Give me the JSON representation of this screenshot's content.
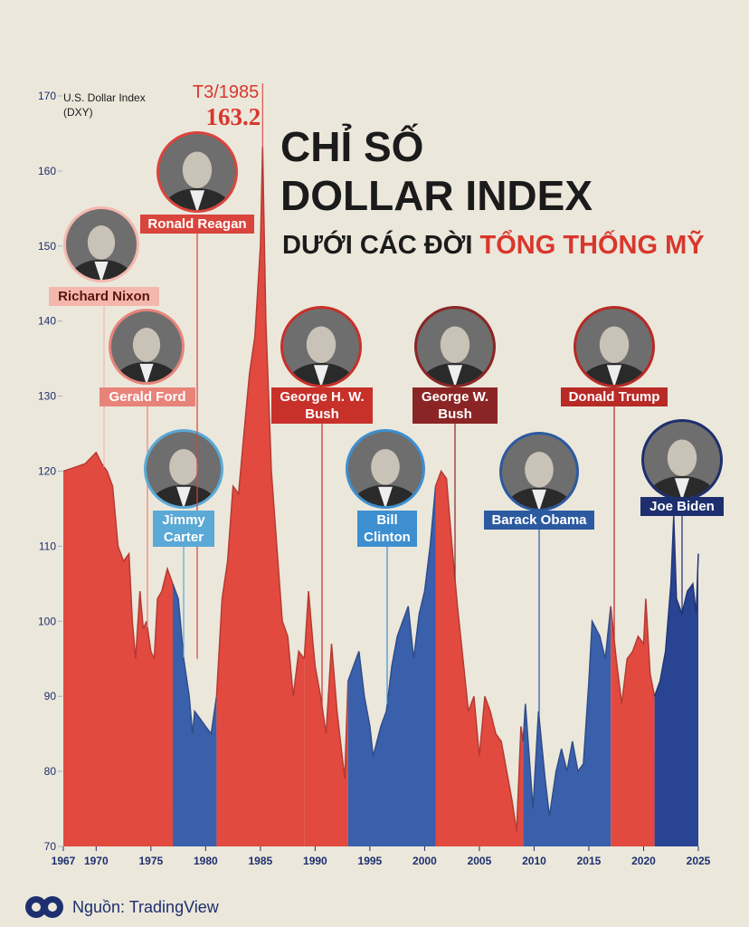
{
  "chart_data": {
    "type": "area",
    "title": [
      "CHỈ SỐ",
      "DOLLAR INDEX",
      "DƯỚI CÁC ĐỜI",
      "TỔNG THỐNG MỸ"
    ],
    "title_color": "#1b1b1b",
    "title_accent_color": "#d9372d",
    "y_label": [
      "U.S. Dollar Index",
      "(DXY)"
    ],
    "source": "Nguồn: TradingView",
    "xlim": [
      1967,
      2025
    ],
    "xticks": [
      1967,
      1970,
      1975,
      1980,
      1985,
      1990,
      1995,
      2000,
      2005,
      2010,
      2015,
      2020,
      2025
    ],
    "ylim": [
      70,
      170
    ],
    "yticks": [
      70,
      80,
      90,
      100,
      110,
      120,
      130,
      140,
      150,
      160,
      170
    ],
    "annotations": [
      {
        "label": "T3/1985",
        "value": 163.2,
        "x": 1985.2,
        "color": "#d9372d"
      }
    ],
    "series": [
      {
        "name": "Richard Nixon",
        "color": "#e24a40",
        "label_color": "#f4b7ae",
        "label_text_color": "#5a1510",
        "x": [
          1967,
          1968,
          1969,
          1970,
          1970.5,
          1971,
          1971.5,
          1972,
          1972.5,
          1973,
          1973.3,
          1973.6,
          1974,
          1974.3,
          1974.6
        ],
        "values": [
          120,
          120.5,
          121,
          122.5,
          121,
          120,
          118,
          110,
          108,
          109,
          100,
          95,
          104,
          99,
          100
        ]
      },
      {
        "name": "Gerald Ford",
        "color": "#e24a40",
        "label_color": "#e8837a",
        "label_text_color": "#ffffff",
        "x": [
          1974.6,
          1975,
          1975.3,
          1975.6,
          1976,
          1976.5,
          1977
        ],
        "values": [
          100,
          96,
          95,
          103,
          104,
          107,
          105
        ]
      },
      {
        "name": "Jimmy Carter",
        "color": "#3b60ab",
        "label_color": "#5aa9d6",
        "label_text_color": "#ffffff",
        "x": [
          1977,
          1977.5,
          1978,
          1978.5,
          1978.8,
          1979,
          1979.5,
          1980,
          1980.5,
          1981
        ],
        "values": [
          105,
          103,
          95,
          90,
          85,
          88,
          87,
          86,
          85,
          90
        ]
      },
      {
        "name": "Ronald Reagan",
        "color": "#e24a40",
        "label_color": "#d9443c",
        "label_text_color": "#ffffff",
        "x": [
          1981,
          1981.5,
          1982,
          1982.5,
          1983,
          1983.5,
          1984,
          1984.5,
          1985,
          1985.2,
          1985.5,
          1986,
          1986.5,
          1987,
          1987.5,
          1988,
          1988.5,
          1989
        ],
        "values": [
          90,
          103,
          108,
          118,
          117,
          125,
          133,
          138,
          150,
          163.2,
          140,
          120,
          110,
          100,
          98,
          90,
          96,
          95
        ]
      },
      {
        "name": "George H. W. Bush",
        "color": "#e24a40",
        "label_color": "#c8302a",
        "label_text_color": "#ffffff",
        "x": [
          1989,
          1989.4,
          1989.8,
          1990,
          1990.5,
          1991,
          1991.5,
          1992,
          1992.7,
          1993
        ],
        "values": [
          95,
          104,
          97,
          94,
          90,
          85,
          97,
          88,
          79,
          92
        ]
      },
      {
        "name": "Bill Clinton",
        "color": "#3b60ab",
        "label_color": "#3d8fd0",
        "label_text_color": "#ffffff",
        "x": [
          1993,
          1993.5,
          1994,
          1994.5,
          1995,
          1995.3,
          1996,
          1996.5,
          1997,
          1997.5,
          1998,
          1998.5,
          1999,
          1999.5,
          2000,
          2000.5,
          2001
        ],
        "values": [
          92,
          94,
          96,
          90,
          86,
          82,
          86,
          88,
          94,
          98,
          100,
          102,
          95,
          101,
          104,
          110,
          118
        ]
      },
      {
        "name": "George W. Bush",
        "color": "#e24a40",
        "label_color": "#8b2525",
        "label_text_color": "#ffffff",
        "x": [
          2001,
          2001.5,
          2002,
          2002.5,
          2003,
          2003.5,
          2004,
          2004.5,
          2005,
          2005.5,
          2006,
          2006.5,
          2007,
          2007.5,
          2008,
          2008.4,
          2008.8,
          2009
        ],
        "values": [
          118,
          120,
          119,
          110,
          102,
          95,
          88,
          90,
          82,
          90,
          88,
          85,
          84,
          80,
          76,
          72,
          86,
          84
        ]
      },
      {
        "name": "Barack Obama",
        "color": "#3b60ab",
        "label_color": "#2b5aa0",
        "label_text_color": "#ffffff",
        "x": [
          2009,
          2009.2,
          2009.9,
          2010.4,
          2011,
          2011.4,
          2012,
          2012.5,
          2013,
          2013.5,
          2014,
          2014.5,
          2015,
          2015.3,
          2016,
          2016.5,
          2017
        ],
        "values": [
          84,
          89,
          75,
          88,
          79,
          74,
          80,
          83,
          80,
          84,
          80,
          81,
          92,
          100,
          98,
          95,
          102
        ]
      },
      {
        "name": "Donald Trump",
        "color": "#e24a40",
        "label_color": "#b72a26",
        "label_text_color": "#ffffff",
        "x": [
          2017,
          2017.5,
          2018,
          2018.5,
          2019,
          2019.5,
          2020,
          2020.2,
          2020.6,
          2021
        ],
        "values": [
          102,
          95,
          89,
          95,
          96,
          98,
          97,
          103,
          93,
          90
        ]
      },
      {
        "name": "Joe Biden",
        "color": "#2a4494",
        "label_color": "#1d2f6e",
        "label_text_color": "#ffffff",
        "x": [
          2021,
          2021.5,
          2022,
          2022.5,
          2022.75,
          2023,
          2023.5,
          2024,
          2024.5,
          2024.8,
          2025
        ],
        "values": [
          90,
          92,
          96,
          105,
          114,
          103,
          101,
          104,
          105,
          101,
          109
        ]
      }
    ]
  }
}
